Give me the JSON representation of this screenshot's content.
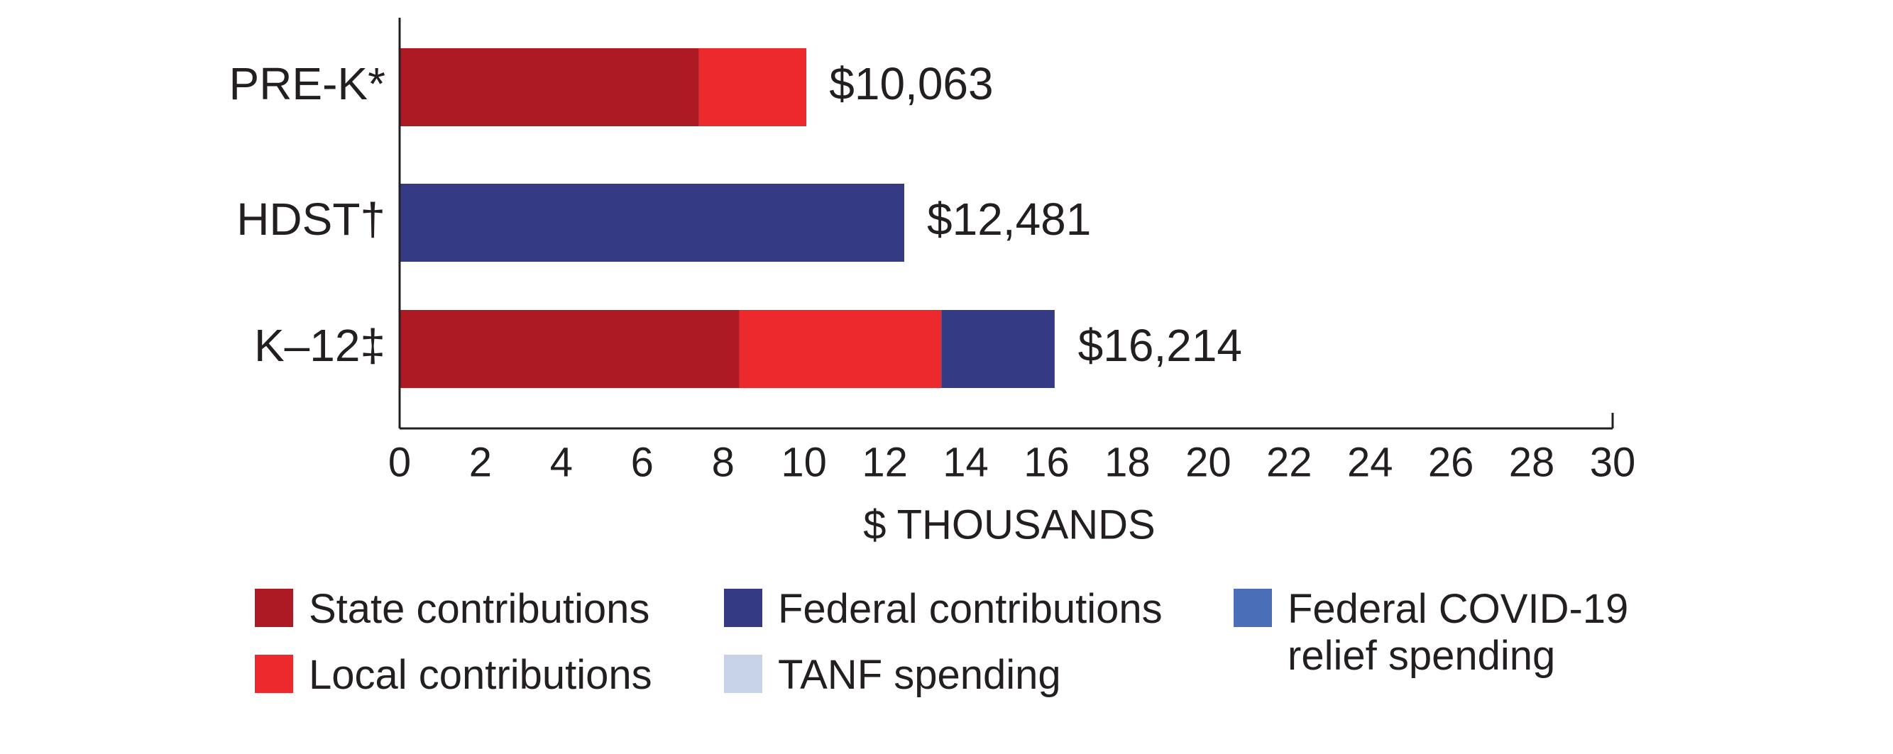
{
  "chart_data": {
    "type": "stacked-barh",
    "categories": [
      "PRE-K*",
      "HDST†",
      "K–12‡"
    ],
    "series": [
      {
        "name": "State contributions",
        "color": "#ae1a23",
        "values": [
          7.4,
          null,
          8.4
        ]
      },
      {
        "name": "Local contributions",
        "color": "#ec2a2e",
        "values": [
          2.66,
          null,
          5.0
        ]
      },
      {
        "name": "Federal contributions",
        "color": "#343a84",
        "values": [
          null,
          12.481,
          2.8
        ]
      },
      {
        "name": "Federal COVID-19 relief spending",
        "color": "#4a6fb8",
        "values": [
          null,
          null,
          null
        ]
      },
      {
        "name": "TANF spending",
        "color": "#c8d3ea",
        "values": [
          null,
          null,
          null
        ]
      }
    ],
    "totals": {
      "values": [
        10.063,
        12.481,
        16.214
      ],
      "value_labels": [
        "$10,063",
        "$12,481",
        "$16,214"
      ]
    },
    "xlabel": "$ THOUSANDS",
    "xlim": [
      0,
      30
    ],
    "xticks": [
      0,
      2,
      4,
      6,
      8,
      10,
      12,
      14,
      16,
      18,
      20,
      22,
      24,
      26,
      28,
      30
    ]
  }
}
